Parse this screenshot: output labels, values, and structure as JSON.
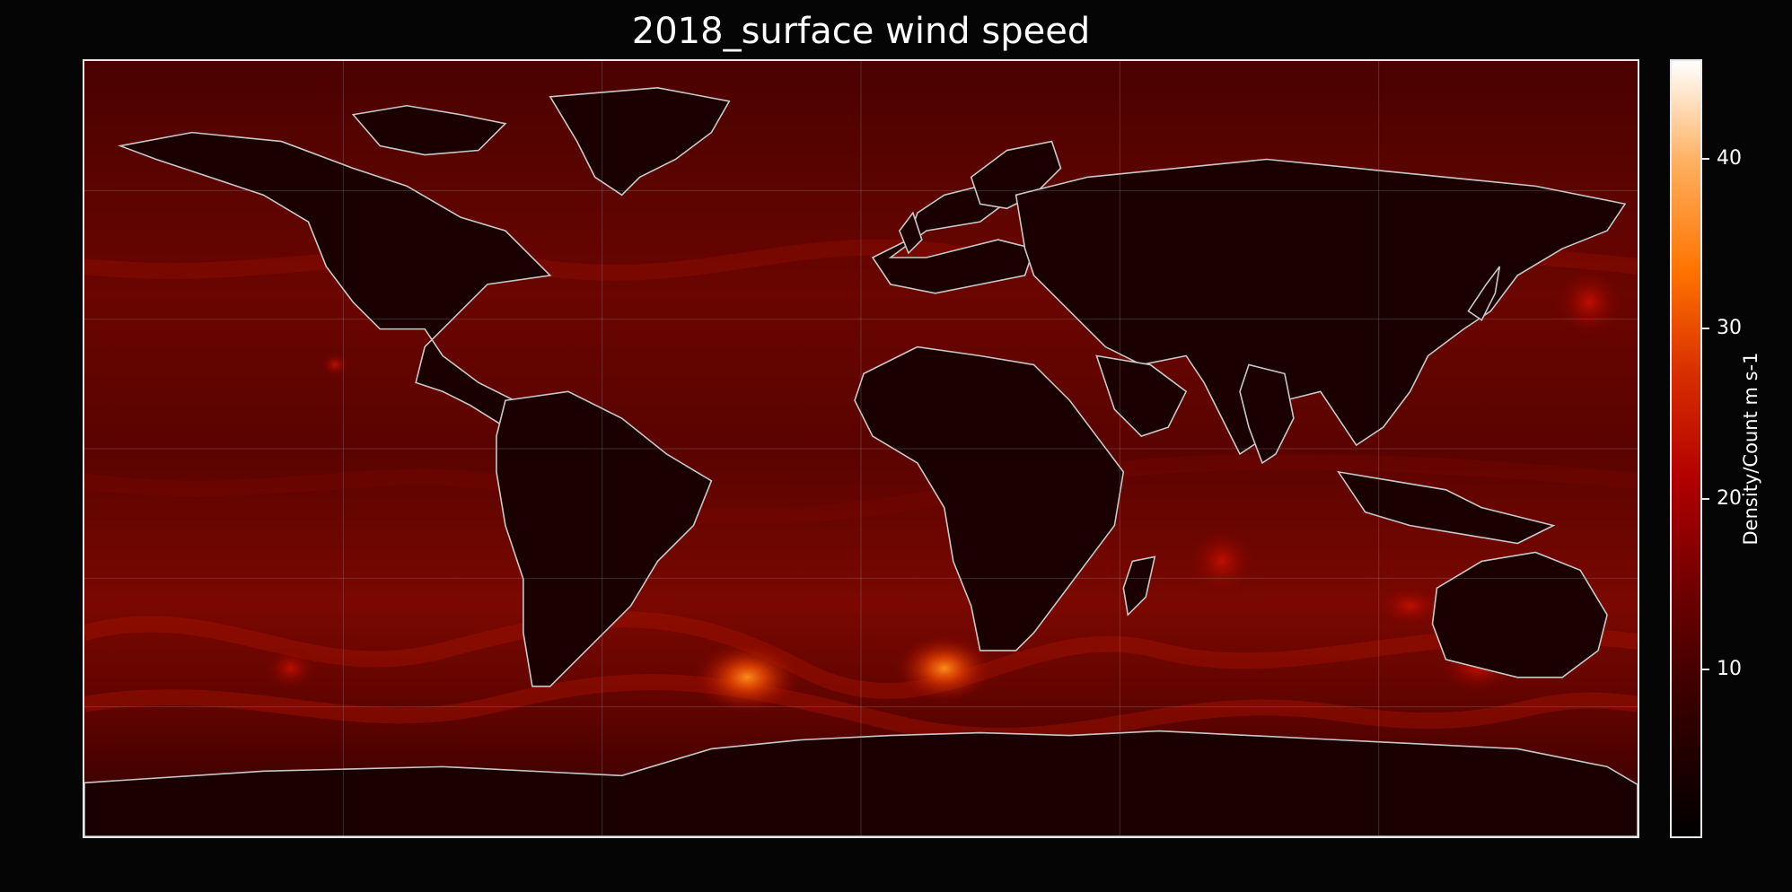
{
  "title": "2018_surface wind speed",
  "map": {
    "projection": "equirectangular",
    "lon_range": [
      -180,
      180
    ],
    "lat_range": [
      -90,
      90
    ],
    "gridlines": true,
    "coastlines": true,
    "country_borders": true,
    "colormap": "gist_heat",
    "background_color": "#050505",
    "border_color": "#e8e8e8",
    "coastline_color": "#c8c8c8"
  },
  "colorbar": {
    "label": "Density/Count m s-1",
    "ticks": [
      "10",
      "20",
      "30",
      "40"
    ],
    "tick_values": [
      10,
      20,
      30,
      40
    ],
    "range": [
      0,
      45.5
    ]
  }
}
